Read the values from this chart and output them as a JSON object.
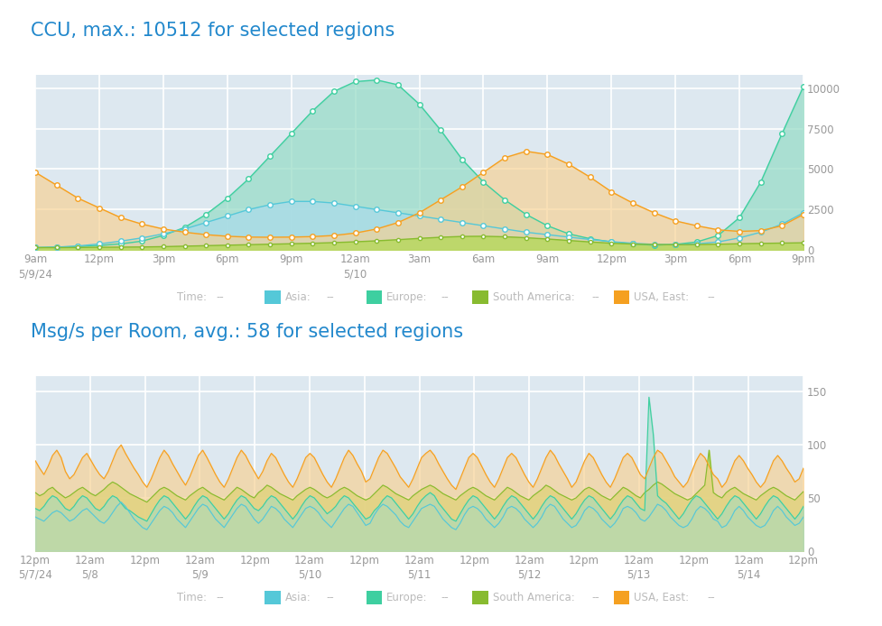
{
  "chart1_title": "CCU, max.: 10512 for selected regions",
  "chart2_title": "Msg/s per Room, avg.: 58 for selected regions",
  "background_color": "#ffffff",
  "plot_bg_color": "#dde8f0",
  "title_color": "#2288cc",
  "title_fontsize": 15,
  "legend_text_color": "#bbbbbb",
  "axis_label_color": "#999999",
  "grid_color": "#ffffff",
  "chart1_xtick_labels": [
    "9am\n5/9/24",
    "12pm",
    "3pm",
    "6pm",
    "9pm",
    "12am\n5/10",
    "3am",
    "6am",
    "9am",
    "12pm",
    "3pm",
    "6pm",
    "9pm"
  ],
  "chart1_ytick_labels": [
    "0",
    "2500",
    "5000",
    "7500",
    "10000"
  ],
  "chart1_ytick_values": [
    0,
    2500,
    5000,
    7500,
    10000
  ],
  "chart1_ylim": [
    0,
    10800
  ],
  "chart2_xtick_labels": [
    "12pm\n5/7/24",
    "12am\n5/8",
    "12pm",
    "12am\n5/9",
    "12pm",
    "12am\n5/10",
    "12pm",
    "12am\n5/11",
    "12pm",
    "12am\n5/12",
    "12pm",
    "12am\n5/13",
    "12pm",
    "12am\n5/14",
    "12pm"
  ],
  "chart2_ytick_labels": [
    "0",
    "50",
    "100",
    "150"
  ],
  "chart2_ytick_values": [
    0,
    50,
    100,
    150
  ],
  "chart2_ylim": [
    0,
    165
  ],
  "color_asia": "#55c8d8",
  "color_europe": "#3ecfa0",
  "color_south_america": "#88bb30",
  "color_usa_east": "#f5a020",
  "fill_asia": "#aadce8",
  "fill_europe": "#9addc8",
  "fill_south_america": "#b8d860",
  "fill_usa_east": "#f8d090",
  "chart1_europe": [
    150,
    180,
    220,
    280,
    380,
    550,
    900,
    1400,
    2200,
    3200,
    4400,
    5800,
    7200,
    8600,
    9800,
    10400,
    10500,
    10200,
    9000,
    7400,
    5600,
    4200,
    3100,
    2200,
    1500,
    1000,
    700,
    500,
    380,
    300,
    350,
    500,
    900,
    2000,
    4200,
    7200,
    10100
  ],
  "chart1_asia": [
    150,
    180,
    250,
    380,
    550,
    750,
    1000,
    1300,
    1700,
    2100,
    2500,
    2800,
    3000,
    3000,
    2900,
    2700,
    2500,
    2300,
    2100,
    1900,
    1700,
    1500,
    1300,
    1100,
    950,
    800,
    650,
    520,
    420,
    350,
    320,
    380,
    500,
    750,
    1100,
    1600,
    2300
  ],
  "chart1_south_america": [
    150,
    150,
    160,
    170,
    180,
    190,
    210,
    240,
    270,
    300,
    330,
    360,
    390,
    420,
    460,
    510,
    570,
    640,
    720,
    790,
    840,
    850,
    820,
    760,
    680,
    590,
    500,
    420,
    370,
    340,
    330,
    340,
    360,
    390,
    410,
    430,
    450
  ],
  "chart1_usa_east": [
    4800,
    4000,
    3200,
    2600,
    2000,
    1600,
    1300,
    1100,
    950,
    850,
    800,
    790,
    800,
    830,
    900,
    1050,
    1300,
    1700,
    2300,
    3100,
    3900,
    4800,
    5700,
    6100,
    5900,
    5300,
    4500,
    3600,
    2900,
    2300,
    1800,
    1500,
    1250,
    1150,
    1200,
    1500,
    2200
  ],
  "chart2_south_america": [
    55,
    52,
    54,
    58,
    60,
    56,
    53,
    50,
    52,
    55,
    58,
    60,
    57,
    54,
    52,
    55,
    58,
    62,
    65,
    63,
    60,
    57,
    54,
    52,
    50,
    48,
    46,
    50,
    54,
    58,
    60,
    58,
    55,
    52,
    50,
    48,
    52,
    55,
    58,
    60,
    57,
    54,
    52,
    50,
    48,
    52,
    56,
    60,
    58,
    55,
    52,
    50,
    55,
    58,
    62,
    60,
    57,
    54,
    52,
    50,
    48,
    52,
    55,
    58,
    60,
    58,
    55,
    52,
    50,
    52,
    55,
    58,
    60,
    58,
    55,
    52,
    50,
    48,
    50,
    54,
    58,
    62,
    60,
    57,
    54,
    52,
    50,
    48,
    52,
    55,
    58,
    60,
    62,
    60,
    57,
    54,
    52,
    50,
    48,
    52,
    55,
    58,
    60,
    58,
    55,
    52,
    50,
    48,
    52,
    56,
    60,
    58,
    55,
    52,
    50,
    48,
    52,
    55,
    58,
    62,
    60,
    57,
    54,
    52,
    50,
    48,
    50,
    54,
    58,
    60,
    58,
    55,
    52,
    50,
    48,
    52,
    56,
    60,
    58,
    55,
    52,
    50,
    55,
    58,
    62,
    65,
    63,
    60,
    57,
    54,
    52,
    50,
    48,
    50,
    54,
    58,
    62,
    95,
    55,
    52,
    50,
    55,
    58,
    60,
    57,
    54,
    52,
    50,
    48,
    52,
    55,
    58,
    60,
    58,
    55,
    52,
    50,
    48,
    52,
    56
  ],
  "chart2_usa_east": [
    85,
    78,
    72,
    80,
    90,
    95,
    88,
    75,
    68,
    72,
    80,
    88,
    92,
    85,
    78,
    72,
    68,
    75,
    85,
    95,
    100,
    92,
    85,
    78,
    72,
    65,
    60,
    68,
    78,
    88,
    95,
    90,
    82,
    75,
    68,
    62,
    70,
    80,
    90,
    95,
    88,
    80,
    72,
    65,
    60,
    68,
    78,
    88,
    95,
    90,
    82,
    75,
    68,
    75,
    85,
    92,
    88,
    80,
    72,
    65,
    60,
    68,
    78,
    88,
    92,
    88,
    80,
    72,
    65,
    60,
    68,
    78,
    88,
    95,
    90,
    82,
    75,
    65,
    68,
    78,
    88,
    95,
    92,
    85,
    78,
    70,
    65,
    60,
    68,
    78,
    88,
    92,
    95,
    90,
    82,
    75,
    68,
    62,
    58,
    68,
    78,
    88,
    92,
    88,
    80,
    72,
    65,
    60,
    68,
    78,
    88,
    92,
    88,
    80,
    72,
    65,
    60,
    68,
    78,
    88,
    95,
    90,
    82,
    75,
    68,
    60,
    65,
    75,
    85,
    92,
    88,
    80,
    72,
    65,
    60,
    68,
    78,
    88,
    92,
    88,
    80,
    72,
    68,
    78,
    88,
    95,
    92,
    85,
    78,
    70,
    65,
    60,
    65,
    75,
    85,
    92,
    88,
    80,
    72,
    68,
    60,
    65,
    75,
    85,
    90,
    85,
    78,
    72,
    65,
    60,
    65,
    75,
    85,
    90,
    85,
    78,
    72,
    65,
    68,
    78
  ],
  "chart2_europe": [
    40,
    38,
    42,
    48,
    52,
    50,
    45,
    40,
    38,
    42,
    48,
    52,
    50,
    45,
    40,
    38,
    42,
    48,
    52,
    50,
    45,
    40,
    38,
    35,
    32,
    30,
    28,
    35,
    42,
    48,
    52,
    50,
    45,
    40,
    35,
    30,
    35,
    42,
    48,
    52,
    50,
    45,
    40,
    35,
    30,
    35,
    42,
    48,
    52,
    50,
    45,
    40,
    38,
    42,
    48,
    52,
    50,
    45,
    40,
    35,
    30,
    35,
    42,
    48,
    52,
    50,
    45,
    40,
    35,
    38,
    42,
    48,
    52,
    50,
    45,
    40,
    35,
    30,
    32,
    38,
    42,
    48,
    52,
    50,
    45,
    40,
    35,
    30,
    35,
    42,
    48,
    52,
    55,
    52,
    45,
    40,
    35,
    30,
    28,
    35,
    42,
    48,
    52,
    50,
    45,
    40,
    35,
    30,
    35,
    42,
    48,
    52,
    50,
    45,
    40,
    35,
    30,
    35,
    42,
    48,
    52,
    50,
    45,
    40,
    35,
    30,
    35,
    42,
    48,
    52,
    50,
    45,
    40,
    35,
    30,
    35,
    42,
    48,
    52,
    50,
    45,
    40,
    38,
    145,
    110,
    52,
    48,
    45,
    40,
    35,
    30,
    35,
    42,
    48,
    52,
    50,
    45,
    40,
    35,
    30,
    35,
    42,
    48,
    52,
    50,
    45,
    40,
    35,
    30,
    35,
    42,
    48,
    52,
    50,
    45,
    40,
    35,
    30,
    35,
    42
  ],
  "chart2_asia": [
    32,
    30,
    28,
    32,
    36,
    38,
    36,
    32,
    28,
    30,
    34,
    38,
    40,
    36,
    32,
    28,
    26,
    30,
    36,
    42,
    46,
    42,
    36,
    30,
    26,
    22,
    20,
    26,
    32,
    38,
    42,
    40,
    36,
    30,
    26,
    22,
    28,
    34,
    40,
    44,
    42,
    36,
    30,
    26,
    22,
    28,
    34,
    40,
    44,
    42,
    36,
    30,
    26,
    30,
    36,
    42,
    40,
    36,
    30,
    26,
    22,
    28,
    34,
    40,
    42,
    40,
    36,
    30,
    26,
    22,
    28,
    34,
    40,
    44,
    42,
    36,
    30,
    24,
    26,
    34,
    40,
    44,
    42,
    38,
    34,
    28,
    24,
    22,
    28,
    34,
    40,
    42,
    44,
    42,
    36,
    30,
    26,
    22,
    20,
    26,
    34,
    40,
    42,
    40,
    36,
    30,
    26,
    22,
    26,
    32,
    40,
    42,
    40,
    36,
    30,
    26,
    22,
    26,
    32,
    40,
    44,
    42,
    36,
    30,
    26,
    22,
    24,
    30,
    38,
    42,
    40,
    36,
    30,
    26,
    22,
    26,
    32,
    40,
    42,
    40,
    36,
    30,
    28,
    32,
    38,
    44,
    42,
    38,
    32,
    28,
    24,
    22,
    24,
    30,
    38,
    42,
    40,
    36,
    30,
    28,
    22,
    24,
    30,
    38,
    42,
    38,
    32,
    28,
    24,
    22,
    24,
    30,
    38,
    42,
    38,
    32,
    28,
    24,
    26,
    32
  ]
}
